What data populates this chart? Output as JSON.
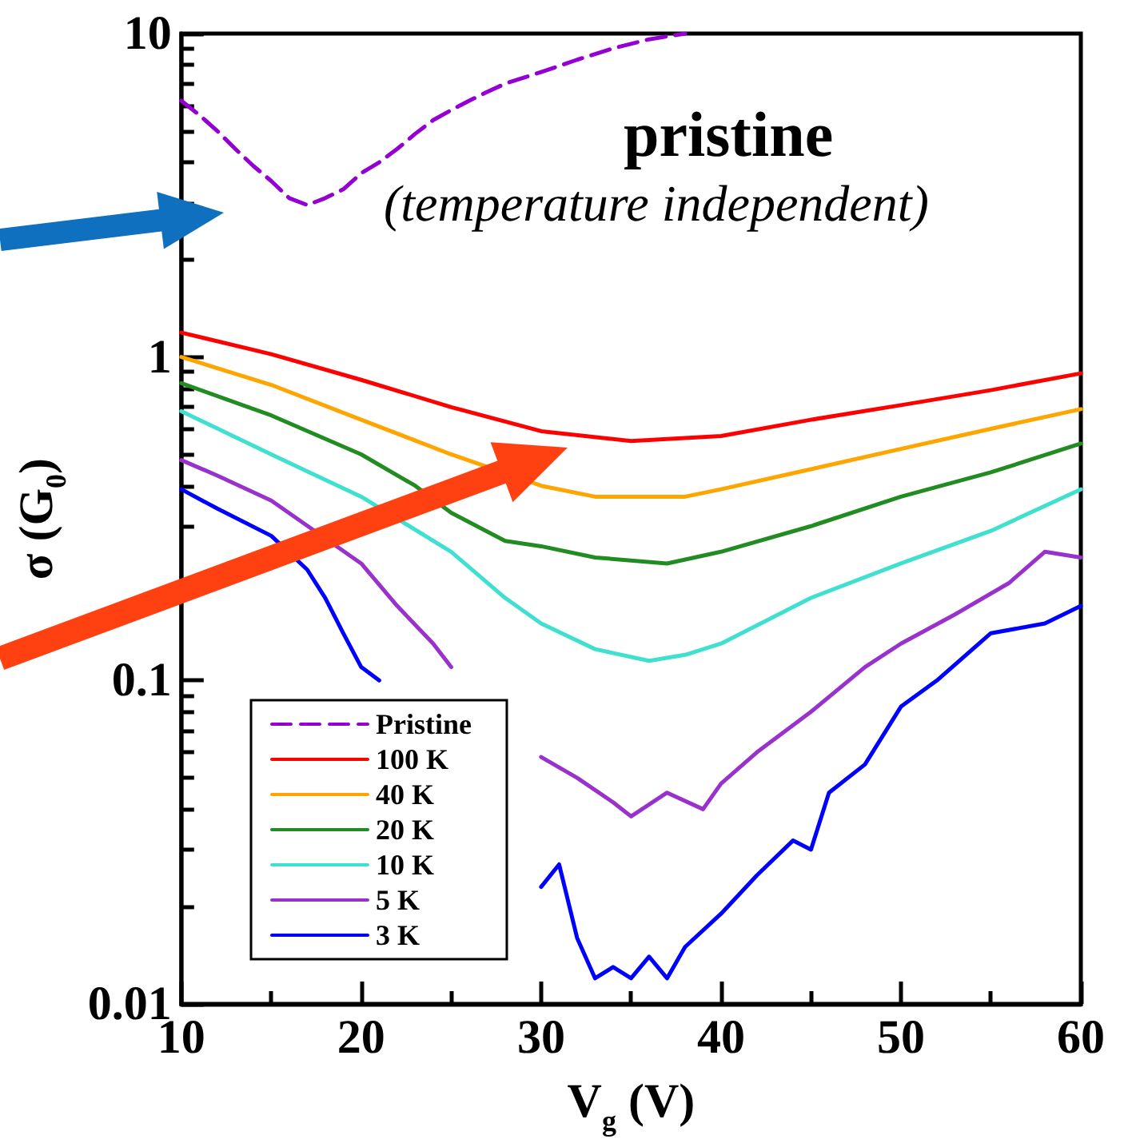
{
  "chart_data": {
    "type": "line",
    "xlabel": "V$_{g}$ (V)",
    "ylabel": "σ (G$_{0}$)",
    "annotations": [
      "pristine",
      "(temperature independent)"
    ],
    "log": "y",
    "marker": "none",
    "grid": false,
    "legend": "bottom left",
    "xlim": [
      10,
      60
    ],
    "xticks": [
      10,
      {
        "value": 15,
        "label": null
      },
      20,
      {
        "value": 25,
        "label": null
      },
      30,
      {
        "value": 35,
        "label": null
      },
      40,
      {
        "value": 45,
        "label": null
      },
      50,
      {
        "value": 55,
        "label": null
      },
      60
    ],
    "ylim": [
      0.01,
      10
    ],
    "yticks": [
      0.01,
      {
        "value": 0.02,
        "label": null
      },
      {
        "value": 0.03,
        "label": null
      },
      {
        "value": 0.04,
        "label": null
      },
      {
        "value": 0.05,
        "label": null
      },
      {
        "value": 0.06,
        "label": null
      },
      {
        "value": 0.07,
        "label": null
      },
      {
        "value": 0.08,
        "label": null
      },
      {
        "value": 0.09,
        "label": null
      },
      0.1,
      {
        "value": 0.2,
        "label": null
      },
      {
        "value": 0.3,
        "label": null
      },
      {
        "value": 0.4,
        "label": null
      },
      {
        "value": 0.5,
        "label": null
      },
      {
        "value": 0.6,
        "label": null
      },
      {
        "value": 0.7,
        "label": null
      },
      {
        "value": 0.8,
        "label": null
      },
      {
        "value": 0.9,
        "label": null
      },
      1,
      {
        "value": 2,
        "label": null
      },
      {
        "value": 3,
        "label": null
      },
      {
        "value": 4,
        "label": null
      },
      {
        "value": 5,
        "label": null
      },
      {
        "value": 6,
        "label": null
      },
      {
        "value": 7,
        "label": null
      },
      {
        "value": 8,
        "label": null
      },
      {
        "value": 9,
        "label": null
      },
      10
    ],
    "series": [
      {
        "name": "Pristine",
        "color": "#9400d3",
        "line_style": "dashed",
        "x": [
          10,
          11,
          12,
          13,
          14,
          15,
          16,
          17,
          18,
          19,
          20,
          21,
          22,
          23,
          24,
          25,
          26,
          27,
          28,
          30,
          32,
          34,
          36,
          38
        ],
        "values": [
          6.2,
          5.6,
          5.0,
          4.4,
          3.9,
          3.5,
          3.1,
          2.95,
          3.1,
          3.3,
          3.7,
          4.0,
          4.4,
          4.9,
          5.4,
          5.8,
          6.2,
          6.6,
          7.0,
          7.6,
          8.3,
          9.0,
          9.6,
          10
        ]
      },
      {
        "name": "100 K",
        "color": "#ff0000",
        "line_style": "solid",
        "x": [
          10,
          15,
          20,
          25,
          30,
          35,
          40,
          45,
          50,
          55,
          60
        ],
        "values": [
          1.19,
          1.02,
          0.85,
          0.7,
          0.59,
          0.55,
          0.57,
          0.64,
          0.71,
          0.79,
          0.89
        ]
      },
      {
        "name": "40 K",
        "color": "#ffa500",
        "line_style": "solid",
        "x": [
          10,
          15,
          20,
          25,
          30,
          33,
          38,
          40,
          45,
          50,
          55,
          60
        ],
        "values": [
          1.0,
          0.82,
          0.64,
          0.5,
          0.4,
          0.37,
          0.37,
          0.39,
          0.45,
          0.52,
          0.6,
          0.69
        ]
      },
      {
        "name": "20 K",
        "color": "#228b22",
        "line_style": "solid",
        "x": [
          10,
          15,
          20,
          23,
          25,
          28,
          30,
          33,
          37,
          40,
          45,
          50,
          55,
          60
        ],
        "values": [
          0.83,
          0.66,
          0.5,
          0.4,
          0.33,
          0.27,
          0.26,
          0.24,
          0.23,
          0.25,
          0.3,
          0.37,
          0.44,
          0.54
        ]
      },
      {
        "name": "10 K",
        "color": "#40e0d0",
        "line_style": "solid",
        "x": [
          10,
          15,
          20,
          25,
          28,
          30,
          33,
          36,
          38,
          40,
          45,
          50,
          55,
          60
        ],
        "values": [
          0.68,
          0.5,
          0.37,
          0.25,
          0.18,
          0.15,
          0.125,
          0.115,
          0.12,
          0.13,
          0.18,
          0.23,
          0.29,
          0.39
        ]
      },
      {
        "name": "5 K",
        "color": "#9932cc",
        "line_style": "solid",
        "x": [
          10,
          12,
          15,
          20,
          22,
          24,
          25,
          27,
          28,
          30,
          32,
          34,
          35,
          37,
          39,
          40,
          42,
          45,
          48,
          50,
          53,
          56,
          58,
          60
        ],
        "values": [
          0.48,
          0.43,
          0.36,
          0.23,
          0.17,
          0.13,
          0.11,
          null,
          null,
          0.058,
          0.05,
          0.042,
          0.038,
          0.045,
          0.04,
          0.048,
          0.06,
          0.08,
          0.11,
          0.13,
          0.16,
          0.2,
          0.25,
          0.24
        ]
      },
      {
        "name": "3 K",
        "color": "#0000ff",
        "line_style": "solid",
        "x": [
          10,
          12,
          15,
          17,
          18,
          19,
          20,
          21,
          25,
          30,
          31,
          32,
          33,
          34,
          35,
          36,
          37,
          38,
          40,
          42,
          44,
          45,
          46,
          48,
          50,
          52,
          55,
          58,
          60
        ],
        "values": [
          0.39,
          0.34,
          0.28,
          0.22,
          0.18,
          0.14,
          0.11,
          0.1,
          null,
          0.023,
          0.027,
          0.016,
          0.012,
          0.013,
          0.012,
          0.014,
          0.012,
          0.015,
          0.019,
          0.025,
          0.032,
          0.03,
          0.045,
          0.055,
          0.083,
          0.1,
          0.14,
          0.15,
          0.17
        ]
      }
    ]
  }
}
